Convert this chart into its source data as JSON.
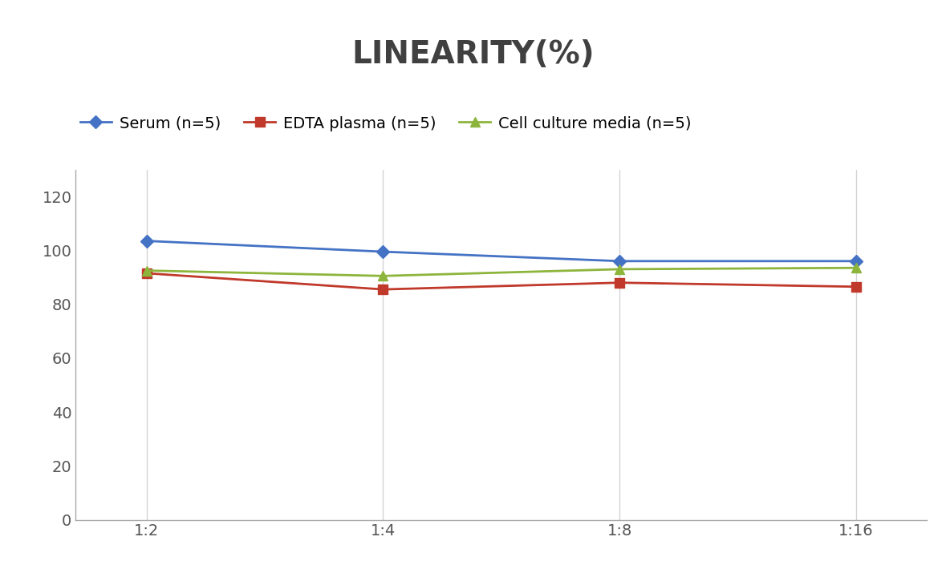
{
  "title": "LINEARITY(%)",
  "title_fontsize": 28,
  "title_fontweight": "bold",
  "x_labels": [
    "1:2",
    "1:4",
    "1:8",
    "1:16"
  ],
  "x_positions": [
    0,
    1,
    2,
    3
  ],
  "series": [
    {
      "label": "Serum (n=5)",
      "values": [
        103.5,
        99.5,
        96.0,
        96.0
      ],
      "color": "#4472C4",
      "marker": "D",
      "markersize": 8,
      "linewidth": 2
    },
    {
      "label": "EDTA plasma (n=5)",
      "values": [
        91.5,
        85.5,
        88.0,
        86.5
      ],
      "color": "#C0392B",
      "marker": "s",
      "markersize": 8,
      "linewidth": 2
    },
    {
      "label": "Cell culture media (n=5)",
      "values": [
        92.5,
        90.5,
        93.0,
        93.5
      ],
      "color": "#8DB53C",
      "marker": "^",
      "markersize": 8,
      "linewidth": 2
    }
  ],
  "ylim": [
    0,
    130
  ],
  "yticks": [
    0,
    20,
    40,
    60,
    80,
    100,
    120
  ],
  "grid_color": "#D3D3D3",
  "background_color": "#FFFFFF",
  "legend_fontsize": 14,
  "tick_fontsize": 14,
  "axis_line_color": "#AAAAAA",
  "title_color": "#404040"
}
